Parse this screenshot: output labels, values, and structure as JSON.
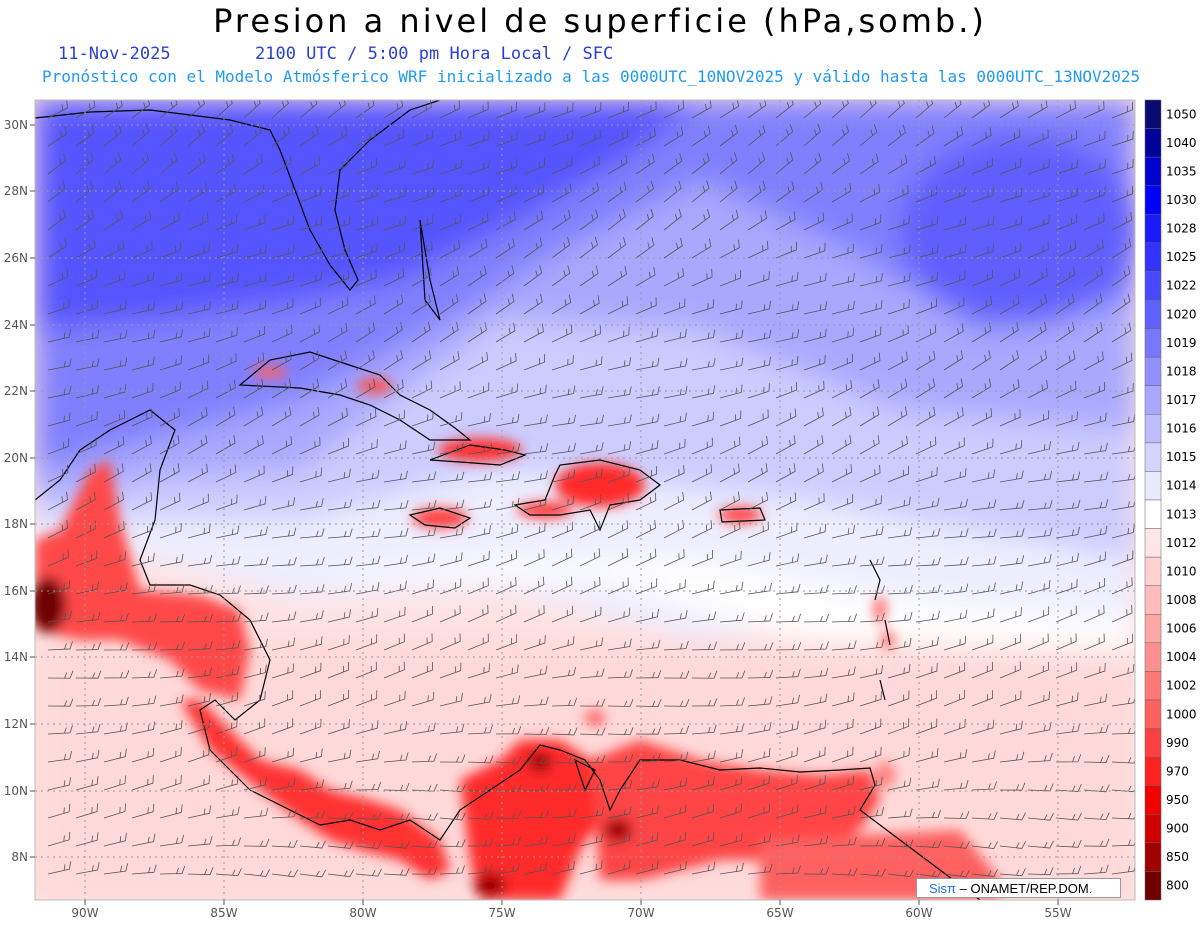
{
  "title": "Presion a nivel de superficie (hPa,somb.)",
  "date": "11-Nov-2025",
  "time": "2100 UTC / 5:00 pm Hora Local / SFC",
  "subtitle": "Pronóstico con el Modelo Atmósferico WRF inicializado a las 0000UTC_10NOV2025 y válido hasta las  0000UTC_13NOV2025",
  "credit": {
    "brand": "Sisπ",
    "org": " – ONAMET/REP.DOM."
  },
  "lat_labels": [
    "30N",
    "28N",
    "26N",
    "24N",
    "22N",
    "20N",
    "18N",
    "16N",
    "14N",
    "12N",
    "10N",
    "8N"
  ],
  "lon_labels": [
    "90W",
    "85W",
    "80W",
    "75W",
    "70W",
    "65W",
    "60W",
    "55W"
  ],
  "colorbar": {
    "levels": [
      "1050",
      "1040",
      "1035",
      "1030",
      "1028",
      "1025",
      "1022",
      "1020",
      "1019",
      "1018",
      "1017",
      "1016",
      "1015",
      "1014",
      "1013",
      "1012",
      "1010",
      "1008",
      "1006",
      "1004",
      "1002",
      "1000",
      "990",
      "970",
      "950",
      "900",
      "850",
      "800"
    ],
    "colors": [
      "#0a0a6e",
      "#00009a",
      "#0000d0",
      "#0000ff",
      "#1a1aff",
      "#3333ff",
      "#4848ff",
      "#6060ff",
      "#7878ff",
      "#9090ff",
      "#a8a8ff",
      "#bebeff",
      "#d4d4ff",
      "#eaeaff",
      "#ffffff",
      "#ffe6e6",
      "#ffd2d2",
      "#ffbcbc",
      "#ffa6a6",
      "#ff9090",
      "#ff7878",
      "#ff6060",
      "#ff4040",
      "#ff2020",
      "#f00000",
      "#d00000",
      "#a00000",
      "#700000"
    ]
  }
}
